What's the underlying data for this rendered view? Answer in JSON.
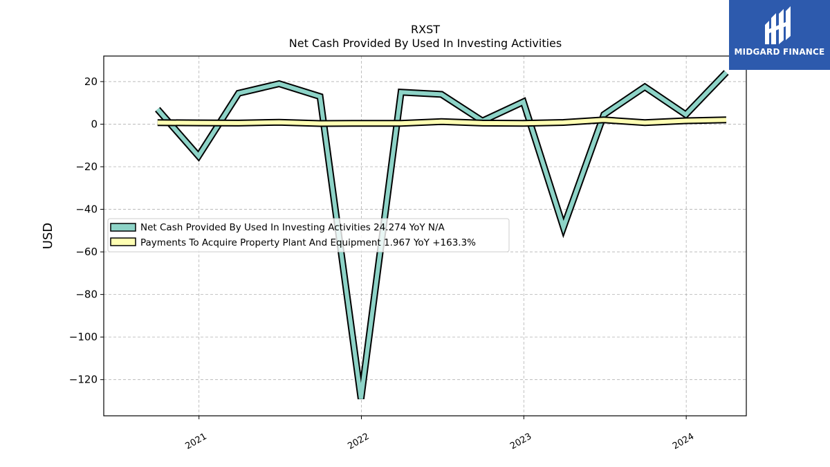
{
  "chart_data": {
    "type": "line",
    "title": "RXST",
    "subtitle": "Net Cash Provided By Used In Investing Activities",
    "ylabel": "USD",
    "xlabel": "",
    "ylim": [
      -137,
      32
    ],
    "xlim": [
      "2020-06-01",
      "2024-05-15"
    ],
    "yticks": [
      20,
      0,
      -20,
      -40,
      -60,
      -80,
      -100,
      -120
    ],
    "ytick_labels": [
      "20",
      "0",
      "−20",
      "−40",
      "−60",
      "−80",
      "−100",
      "−120"
    ],
    "xticks": [
      "2021-01-01",
      "2022-01-01",
      "2023-01-01",
      "2024-01-01"
    ],
    "xtick_labels": [
      "2021",
      "2022",
      "2023",
      "2024"
    ],
    "grid": true,
    "legend_position": "center-left",
    "series": [
      {
        "name": "Net Cash Provided By Used In Investing Activities",
        "legend_label": "Net Cash Provided By Used In Investing Activities  24.274 YoY N/A",
        "color": "#8dd3c7",
        "x": [
          "2020-09-30",
          "2020-12-31",
          "2021-03-31",
          "2021-06-30",
          "2021-09-30",
          "2021-12-31",
          "2022-03-31",
          "2022-06-30",
          "2022-09-30",
          "2022-12-31",
          "2023-03-31",
          "2023-06-30",
          "2023-09-30",
          "2023-12-31",
          "2024-03-31"
        ],
        "values": [
          7,
          -15,
          14.5,
          19,
          13,
          -129,
          15,
          14,
          1.5,
          10.5,
          -48.5,
          4.5,
          17.5,
          4.5,
          24.3
        ]
      },
      {
        "name": "Payments To Acquire Property Plant And Equipment",
        "legend_label": "Payments To Acquire Property Plant And Equipment  1.967 YoY +163.3%",
        "color": "#ffffb3",
        "x": [
          "2020-09-30",
          "2020-12-31",
          "2021-03-31",
          "2021-06-30",
          "2021-09-30",
          "2021-12-31",
          "2022-03-31",
          "2022-06-30",
          "2022-09-30",
          "2022-12-31",
          "2023-03-31",
          "2023-06-30",
          "2023-09-30",
          "2023-12-31",
          "2024-03-31"
        ],
        "values": [
          0.7,
          0.6,
          0.5,
          0.9,
          0.3,
          0.4,
          0.4,
          1.2,
          0.5,
          0.4,
          0.8,
          2.0,
          0.7,
          1.6,
          2.0
        ]
      }
    ]
  },
  "logo": {
    "text": "MIDGARD FINANCE",
    "background": "#2d5aad"
  }
}
